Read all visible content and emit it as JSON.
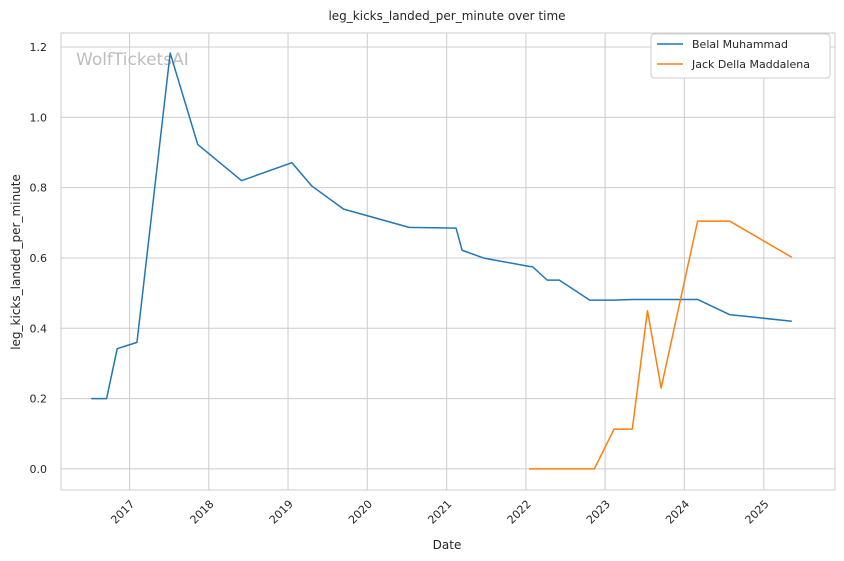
{
  "chart_data": {
    "type": "line",
    "title": "leg_kicks_landed_per_minute over time",
    "xlabel": "Date",
    "ylabel": "leg_kicks_landed_per_minute",
    "watermark": "WolfTicketsAI",
    "x_ticks": [
      "2017",
      "2018",
      "2019",
      "2020",
      "2021",
      "2022",
      "2023",
      "2024",
      "2025"
    ],
    "y_ticks": [
      "0.0",
      "0.2",
      "0.4",
      "0.6",
      "0.8",
      "1.0",
      "1.2"
    ],
    "xlim": [
      "2016-02-20",
      "2025-11-25"
    ],
    "ylim": [
      -0.06,
      1.24
    ],
    "grid": true,
    "legend_position": "top-right",
    "series": [
      {
        "name": "Belal Muhammad",
        "color": "#1f77b4",
        "points": [
          [
            "2016-07-08",
            0.2
          ],
          [
            "2016-09-17",
            0.2
          ],
          [
            "2016-11-05",
            0.342
          ],
          [
            "2017-02-04",
            0.36
          ],
          [
            "2017-07-07",
            1.183
          ],
          [
            "2017-11-11",
            0.923
          ],
          [
            "2018-06-01",
            0.82
          ],
          [
            "2019-01-19",
            0.871
          ],
          [
            "2019-04-20",
            0.805
          ],
          [
            "2019-09-14",
            0.739
          ],
          [
            "2020-07-12",
            0.687
          ],
          [
            "2021-02-13",
            0.685
          ],
          [
            "2021-03-13",
            0.622
          ],
          [
            "2021-06-19",
            0.6
          ],
          [
            "2022-01-15",
            0.576
          ],
          [
            "2022-02-01",
            0.575
          ],
          [
            "2022-04-09",
            0.537
          ],
          [
            "2022-06-04",
            0.537
          ],
          [
            "2022-10-22",
            0.48
          ],
          [
            "2023-02-10",
            0.48
          ],
          [
            "2023-05-06",
            0.482
          ],
          [
            "2024-03-02",
            0.482
          ],
          [
            "2024-07-27",
            0.439
          ],
          [
            "2025-05-10",
            0.42
          ]
        ]
      },
      {
        "name": "Jack Della Maddalena",
        "color": "#ff7f0e",
        "points": [
          [
            "2022-01-15",
            0.0
          ],
          [
            "2022-11-12",
            0.0
          ],
          [
            "2023-02-11",
            0.113
          ],
          [
            "2023-05-06",
            0.113
          ],
          [
            "2023-07-15",
            0.45
          ],
          [
            "2023-09-16",
            0.23
          ],
          [
            "2024-03-02",
            0.705
          ],
          [
            "2024-07-27",
            0.705
          ],
          [
            "2025-05-10",
            0.602
          ]
        ]
      }
    ]
  }
}
